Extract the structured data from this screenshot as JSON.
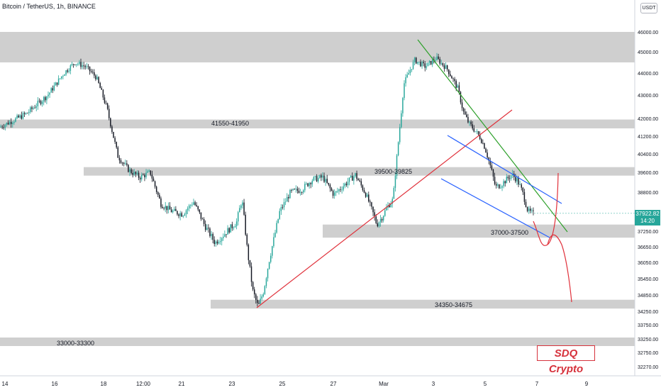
{
  "header": {
    "symbol_line": "Bitcoin / TetherUS, 1h, BINANCE",
    "currency_button": "USDT"
  },
  "watermark": "SDQ Crypto",
  "last_price": {
    "price": "37922.82",
    "countdown": "14:20"
  },
  "colors": {
    "up": "#26a69a",
    "down": "#131722",
    "zone": "#cfcfcf",
    "support_line": "#e0313b",
    "channel": "#2962ff",
    "resistance": "#2da02a",
    "projection": "#e0313b"
  },
  "chart_data": {
    "type": "candlestick",
    "title": "Bitcoin / TetherUS, 1h, BINANCE",
    "x_ticks": [
      "14",
      "16",
      "18",
      "12:00",
      "21",
      "23",
      "25",
      "27",
      "Mar",
      "3",
      "5",
      "7",
      "9"
    ],
    "y_ticks": [
      46000,
      45000,
      44000,
      43000,
      42000,
      41200,
      40400,
      39600,
      38800,
      38000,
      37250,
      36650,
      36050,
      35450,
      34850,
      34250,
      33750,
      33250,
      32750,
      32270
    ],
    "zones": [
      {
        "label": "",
        "low": 44500,
        "high": 46000
      },
      {
        "label": "41550-41950",
        "low": 41550,
        "high": 41950
      },
      {
        "label": "39500-39825",
        "low": 39500,
        "high": 39825
      },
      {
        "label": "37000-37500",
        "low": 37000,
        "high": 37500
      },
      {
        "label": "34350-34675",
        "low": 34350,
        "high": 34675
      },
      {
        "label": "33000-33300",
        "low": 33000,
        "high": 33300
      }
    ],
    "price_path": [
      [
        0,
        41600
      ],
      [
        5,
        42200
      ],
      [
        9,
        43000
      ],
      [
        12,
        44000
      ],
      [
        14,
        44500
      ],
      [
        16,
        44300
      ],
      [
        18,
        43800
      ],
      [
        20,
        42400
      ],
      [
        22,
        40300
      ],
      [
        24,
        39700
      ],
      [
        26,
        39400
      ],
      [
        28,
        39600
      ],
      [
        30,
        38300
      ],
      [
        32,
        38000
      ],
      [
        34,
        37900
      ],
      [
        36,
        38400
      ],
      [
        38,
        37500
      ],
      [
        40,
        36800
      ],
      [
        42,
        37200
      ],
      [
        44,
        37600
      ],
      [
        45,
        38500
      ],
      [
        46,
        36500
      ],
      [
        47,
        35000
      ],
      [
        48,
        34400
      ],
      [
        49,
        35000
      ],
      [
        50,
        36100
      ],
      [
        52,
        38000
      ],
      [
        54,
        38800
      ],
      [
        56,
        38900
      ],
      [
        58,
        39300
      ],
      [
        60,
        39400
      ],
      [
        62,
        38700
      ],
      [
        64,
        39100
      ],
      [
        66,
        39500
      ],
      [
        68,
        38700
      ],
      [
        70,
        37500
      ],
      [
        71,
        37800
      ],
      [
        72,
        38200
      ],
      [
        73,
        38500
      ],
      [
        74,
        41000
      ],
      [
        75,
        43500
      ],
      [
        77,
        44600
      ],
      [
        79,
        44300
      ],
      [
        81,
        44700
      ],
      [
        83,
        44200
      ],
      [
        85,
        43300
      ],
      [
        86,
        42300
      ],
      [
        87,
        41800
      ],
      [
        88,
        41500
      ],
      [
        89,
        41200
      ],
      [
        90,
        40700
      ],
      [
        91,
        39900
      ],
      [
        92,
        39000
      ],
      [
        93,
        39100
      ],
      [
        94,
        39300
      ],
      [
        95,
        39500
      ],
      [
        96,
        39300
      ],
      [
        97,
        38800
      ],
      [
        98,
        38000
      ],
      [
        99,
        37900
      ]
    ],
    "last_price": 37922.82
  }
}
